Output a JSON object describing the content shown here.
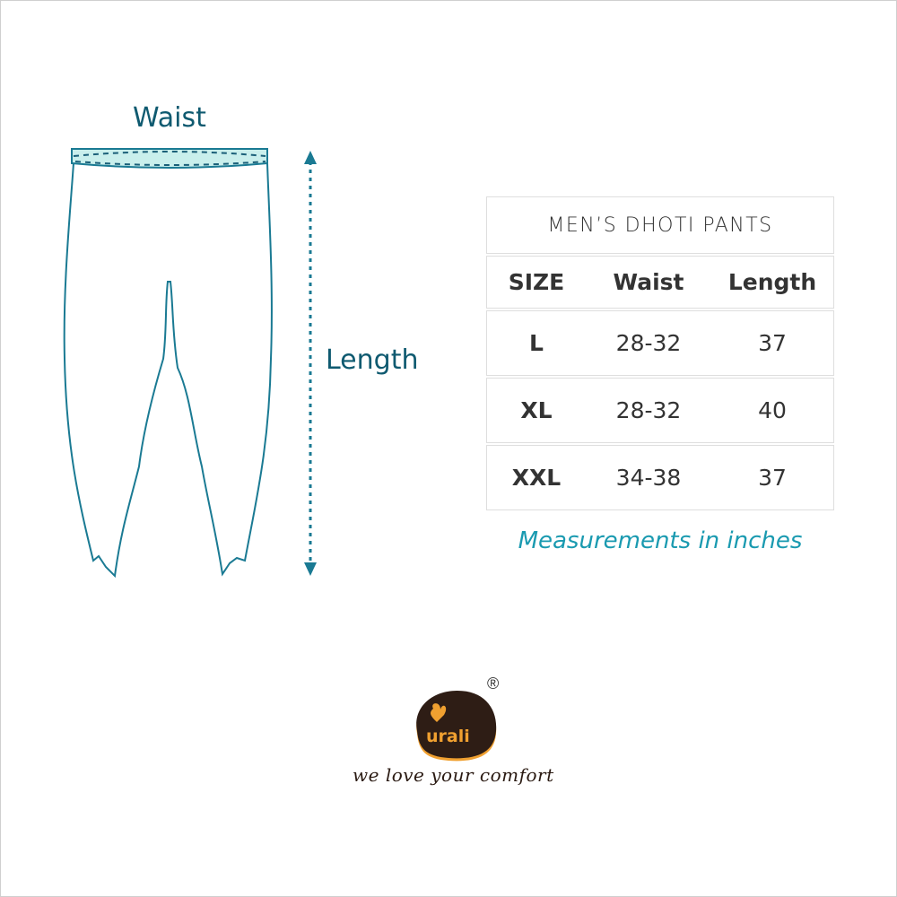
{
  "diagram": {
    "waist_label": "Waist",
    "length_label": "Length"
  },
  "table": {
    "title": "MEN’S DHOTI PANTS",
    "headers": [
      "SIZE",
      "Waist",
      "Length"
    ],
    "rows": [
      [
        "L",
        "28-32",
        "37"
      ],
      [
        "XL",
        "28-32",
        "40"
      ],
      [
        "XXL",
        "34-38",
        "37"
      ]
    ]
  },
  "note": "Measurements in inches",
  "brand": {
    "name": "urali",
    "registered": "®",
    "tagline": "we love your comfort"
  },
  "colors": {
    "outline": "#1a7a93",
    "waistband": "#c9efec",
    "label": "#0f5a70",
    "note": "#1a9ab0",
    "logo_bg": "#2e1d15",
    "logo_accent": "#f0a030"
  }
}
